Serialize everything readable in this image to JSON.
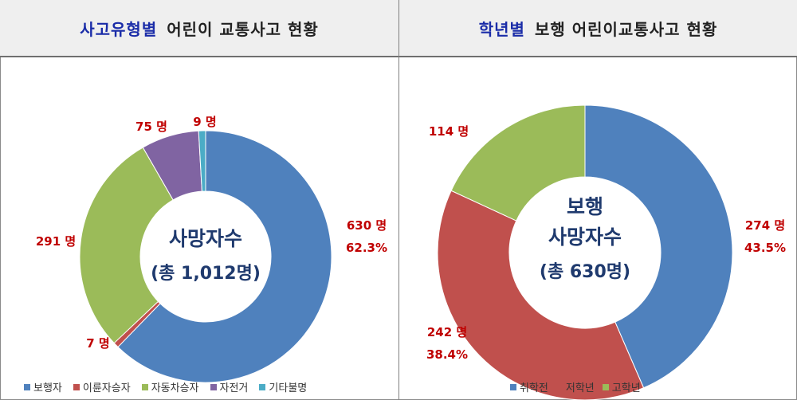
{
  "colors": {
    "blue": "#4F81BD",
    "red": "#C0504D",
    "green": "#9BBB59",
    "purple": "#8064A2",
    "teal": "#4BACC6",
    "label": "#C00000",
    "center_text": "#1F3A6E"
  },
  "left_panel": {
    "title_highlight": "사고유형별",
    "title_rest": "어린이 교통사고 현황",
    "center_title": "사망자수",
    "center_sub": "(총 1,012명)",
    "labels": [
      {
        "count": "630 명",
        "pct": "62.3%"
      },
      {
        "count": "7 명"
      },
      {
        "count": "291 명"
      },
      {
        "count": "75 명"
      },
      {
        "count": "9 명"
      }
    ]
  },
  "right_panel": {
    "title_highlight": "학년별",
    "title_rest": "보행 어린이교통사고 현황",
    "center_title_1": "보행",
    "center_title_2": "사망자수",
    "center_sub": "(총 630명)",
    "labels": [
      {
        "count": "274 명",
        "pct": "43.5%"
      },
      {
        "count": "242 명",
        "pct": "38.4%"
      },
      {
        "count": "114 명"
      }
    ]
  },
  "chart_data": [
    {
      "type": "pie",
      "title": "사고유형별 어린이 교통사고 현황",
      "categories": [
        "보행자",
        "이륜자승자",
        "자동차승자",
        "자전거",
        "기타불명"
      ],
      "values": [
        630,
        7,
        291,
        75,
        9
      ],
      "percentages": [
        62.3,
        null,
        null,
        null,
        null
      ],
      "colors": [
        "#4F81BD",
        "#C0504D",
        "#9BBB59",
        "#8064A2",
        "#4BACC6"
      ],
      "legend": "bottom"
    },
    {
      "type": "pie",
      "title": "학년별 보행 어린이교통사고 현황",
      "categories": [
        "취학전",
        "저학년",
        "고학년"
      ],
      "values": [
        274,
        242,
        114
      ],
      "percentages": [
        43.5,
        38.4,
        null
      ],
      "colors": [
        "#4F81BD",
        "#C0504D",
        "#9BBB59"
      ],
      "legend": "bottom"
    }
  ]
}
